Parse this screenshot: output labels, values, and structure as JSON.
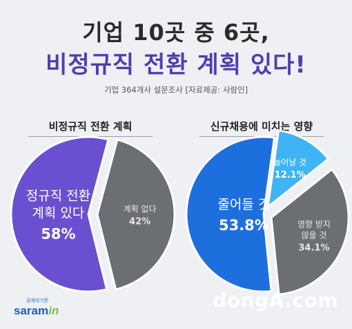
{
  "header": {
    "line1": "기업 10곳 중 6곳,",
    "line2": "비정규직 전환 계획 있다!",
    "source": "기업 364개사 설문조사  [자료제공: 사람인]"
  },
  "chart_data": [
    {
      "type": "pie",
      "title": "비정규직 전환 계획",
      "slices": [
        {
          "label_lines": [
            "정규직 전환",
            "계획 있다"
          ],
          "value": 58,
          "value_text": "58%",
          "color": "#6a4fd0",
          "text_color": "#ffffff"
        },
        {
          "label_lines": [
            "계획 없다"
          ],
          "value": 42,
          "value_text": "42%",
          "color": "#6b6e73",
          "text_color": "#e8e8e8"
        }
      ]
    },
    {
      "type": "pie",
      "title": "신규채용에 미치는 영향",
      "slices": [
        {
          "label_lines": [
            "줄어들 것"
          ],
          "value": 53.8,
          "value_text": "53.8%",
          "color": "#1e6fde",
          "text_color": "#ffffff"
        },
        {
          "label_lines": [
            "늘어날 것"
          ],
          "value": 12.1,
          "value_text": "12.1%",
          "color": "#3fb4f5",
          "text_color": "#ffffff"
        },
        {
          "label_lines": [
            "영향 받지",
            "않을 것"
          ],
          "value": 34.1,
          "value_text": "34.1%",
          "color": "#6b6e73",
          "text_color": "#e8e8e8"
        }
      ]
    }
  ],
  "footer": {
    "logo_small": "공채의기준",
    "logo_main": "saram",
    "logo_in": "in",
    "watermark": "dongA.com"
  }
}
